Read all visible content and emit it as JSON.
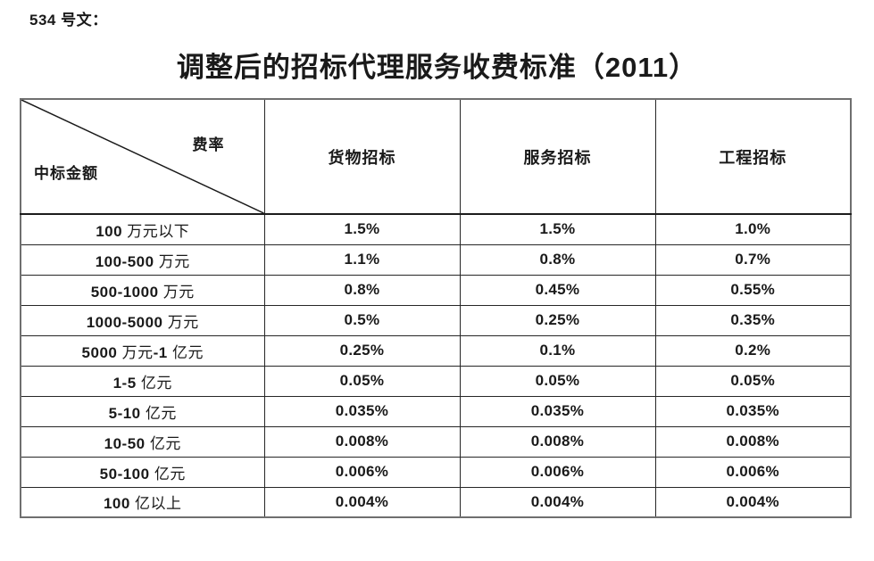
{
  "doc_number": "534 号文：",
  "title": "调整后的招标代理服务收费标准（2011）",
  "table": {
    "corner": {
      "top_right": "费率",
      "bottom_left": "中标金额"
    },
    "columns": [
      "货物招标",
      "服务招标",
      "工程招标"
    ],
    "rows": [
      {
        "label": "100 万元以下",
        "values": [
          "1.5%",
          "1.5%",
          "1.0%"
        ]
      },
      {
        "label": "100-500 万元",
        "values": [
          "1.1%",
          "0.8%",
          "0.7%"
        ]
      },
      {
        "label": "500-1000 万元",
        "values": [
          "0.8%",
          "0.45%",
          "0.55%"
        ]
      },
      {
        "label": "1000-5000 万元",
        "values": [
          "0.5%",
          "0.25%",
          "0.35%"
        ]
      },
      {
        "label": "5000 万元-1 亿元",
        "values": [
          "0.25%",
          "0.1%",
          "0.2%"
        ]
      },
      {
        "label": "1-5 亿元",
        "values": [
          "0.05%",
          "0.05%",
          "0.05%"
        ]
      },
      {
        "label": "5-10 亿元",
        "values": [
          "0.035%",
          "0.035%",
          "0.035%"
        ]
      },
      {
        "label": "10-50 亿元",
        "values": [
          "0.008%",
          "0.008%",
          "0.008%"
        ]
      },
      {
        "label": "50-100 亿元",
        "values": [
          "0.006%",
          "0.006%",
          "0.006%"
        ]
      },
      {
        "label": "100 亿以上",
        "values": [
          "0.004%",
          "0.004%",
          "0.004%"
        ]
      }
    ]
  },
  "colors": {
    "text": "#1a1a1a",
    "border_inner": "#262626",
    "border_outer": "#6f6f6f",
    "background": "#ffffff"
  }
}
